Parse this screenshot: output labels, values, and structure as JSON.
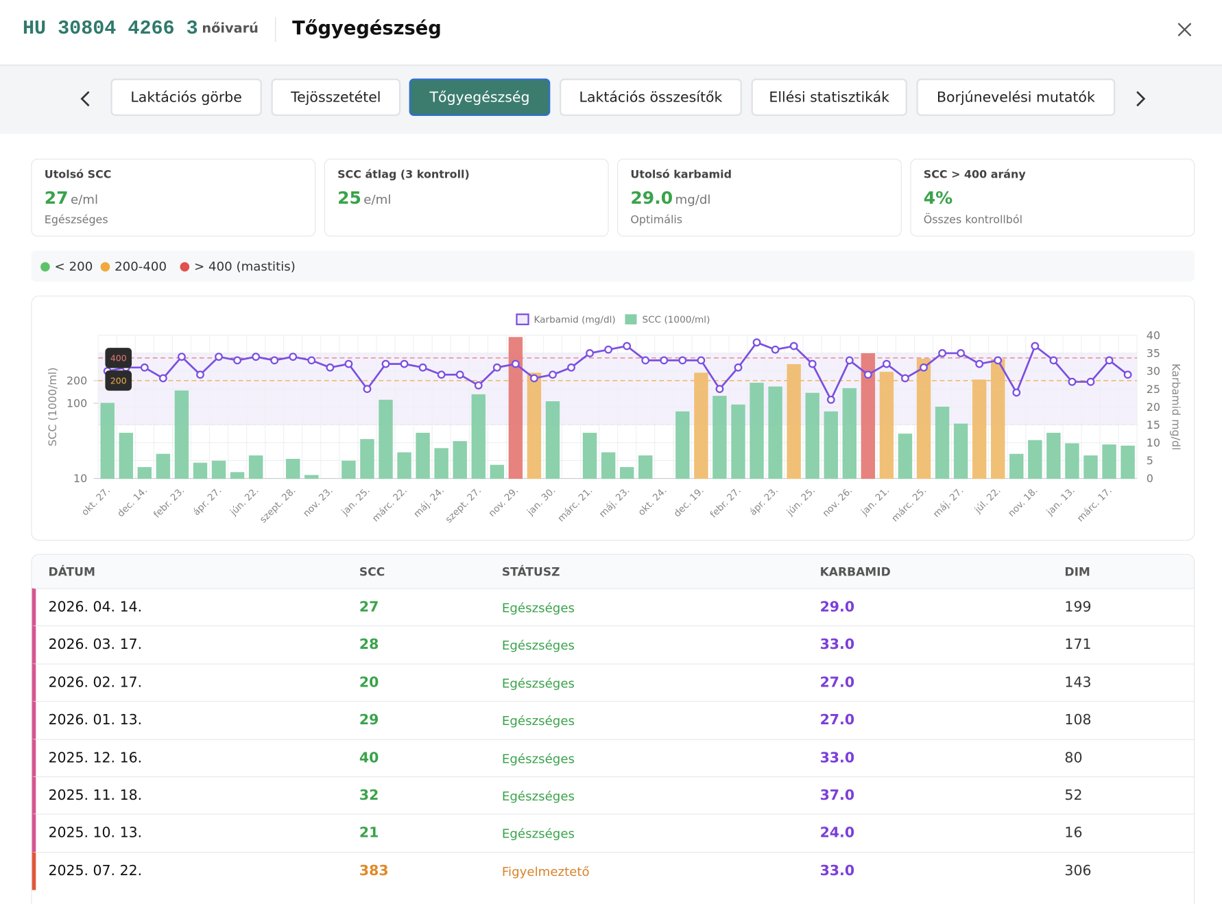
{
  "header": {
    "animal_id": "HU 30804 4266 3",
    "sex": "nőivarú",
    "title": "Tőgyegészség"
  },
  "tabs": {
    "items": [
      "Laktációs görbe",
      "Tejösszetétel",
      "Tőgyegészség",
      "Laktációs összesítők",
      "Ellési statisztikák",
      "Borjúnevelési mutatók"
    ],
    "active": 2
  },
  "kpis": [
    {
      "title": "Utolsó SCC",
      "value": "27",
      "unit": "e/ml",
      "note": "Egészséges"
    },
    {
      "title": "SCC átlag (3 kontroll)",
      "value": "25",
      "unit": "e/ml"
    },
    {
      "title": "Utolsó karbamid",
      "value": "29.0",
      "unit": "mg/dl",
      "note": "Optimális"
    },
    {
      "title": "SCC > 400 arány",
      "value": "4%",
      "note": "Összes kontrollból"
    }
  ],
  "scc_legend": [
    {
      "label": "< 200",
      "color": "#5cc36a"
    },
    {
      "label": "200-400",
      "color": "#f0a93b"
    },
    {
      "label": "> 400 (mastitis)",
      "color": "#e0504d"
    }
  ],
  "chart_data": {
    "type": "bar",
    "categories": [
      "okt. 27.",
      null,
      "dec. 14.",
      null,
      "febr. 23.",
      null,
      "ápr. 27.",
      null,
      "jún. 22.",
      null,
      "szept. 28.",
      null,
      "nov. 23.",
      null,
      "jan. 25.",
      null,
      "márc. 22.",
      null,
      "máj. 24.",
      null,
      "szept. 27.",
      null,
      "nov. 29.",
      null,
      "jan. 30.",
      null,
      "márc. 21.",
      null,
      "máj. 23.",
      null,
      "okt. 24.",
      null,
      "dec. 19.",
      null,
      "febr. 27.",
      null,
      "ápr. 23.",
      null,
      "jún. 25.",
      null,
      "nov. 26.",
      null,
      "jan. 21.",
      null,
      "márc. 25.",
      null,
      "máj. 27.",
      null,
      "júl. 22.",
      null,
      "nov. 18.",
      null,
      "jan. 13.",
      null,
      "márc. 17.",
      null
    ],
    "series": [
      {
        "name": "Karbamid (mg/dl)",
        "type": "line",
        "axis": "y2",
        "color": "#7b4fe0",
        "values": [
          30,
          31,
          31,
          28,
          34,
          29,
          34,
          33,
          34,
          33,
          34,
          33,
          31,
          32,
          25,
          32,
          32,
          31,
          29,
          29,
          26,
          31,
          32,
          28,
          29,
          31,
          35,
          36,
          37,
          33,
          33,
          33,
          33,
          25,
          31,
          38,
          36,
          37,
          32,
          22,
          33,
          29,
          32,
          28,
          31,
          35,
          35,
          32,
          33,
          24,
          37,
          33,
          27,
          27,
          33,
          29
        ]
      },
      {
        "name": "SCC (1000/ml)",
        "type": "bar",
        "color": "#86cfa8",
        "values": [
          100,
          40,
          14,
          21,
          146,
          16,
          17,
          12,
          20,
          null,
          18,
          11,
          null,
          17,
          33,
          110,
          22,
          40,
          25,
          31,
          130,
          15,
          750,
          252,
          105,
          null,
          40,
          22,
          14,
          20,
          null,
          77,
          252,
          124,
          95,
          185,
          165,
          327,
          136,
          77,
          157,
          457,
          258,
          39,
          387,
          89,
          53,
          204,
          383,
          21,
          32,
          40,
          29,
          20,
          28,
          27
        ]
      }
    ],
    "ylabel": "SCC (1000/ml)",
    "y2label": "Karbamid mg/dl",
    "ylim": [
      10,
      800
    ],
    "yticks": [
      10,
      100,
      200
    ],
    "log_y": true,
    "y2lim": [
      0,
      40
    ],
    "y2ticks": [
      0,
      5,
      10,
      15,
      20,
      25,
      30,
      35,
      40
    ],
    "y2_band": [
      15,
      35
    ],
    "thresholds": [
      200,
      400
    ],
    "threshold_colors": [
      "#f0b050",
      "#e87878"
    ],
    "bar_colors": [
      "#86cfa8",
      "#f0bd70",
      "#e57c78"
    ],
    "grid": true
  },
  "table": {
    "columns": [
      "DÁTUM",
      "SCC",
      "STÁTUSZ",
      "KARBAMID",
      "DIM"
    ],
    "rows": [
      [
        "2026. 04. 14.",
        "27",
        "Egészséges",
        "29.0",
        "199"
      ],
      [
        "2026. 03. 17.",
        "28",
        "Egészséges",
        "33.0",
        "171"
      ],
      [
        "2026. 02. 17.",
        "20",
        "Egészséges",
        "27.0",
        "143"
      ],
      [
        "2026. 01. 13.",
        "29",
        "Egészséges",
        "27.0",
        "108"
      ],
      [
        "2025. 12. 16.",
        "40",
        "Egészséges",
        "33.0",
        "80"
      ],
      [
        "2025. 11. 18.",
        "32",
        "Egészséges",
        "37.0",
        "52"
      ],
      [
        "2025. 10. 13.",
        "21",
        "Egészséges",
        "24.0",
        "16"
      ],
      [
        "2025. 07. 22.",
        "383",
        "Figyelmeztető",
        "33.0",
        "306"
      ]
    ],
    "row_status": [
      "ok",
      "ok",
      "ok",
      "ok",
      "ok",
      "ok",
      "ok",
      "warn"
    ]
  }
}
